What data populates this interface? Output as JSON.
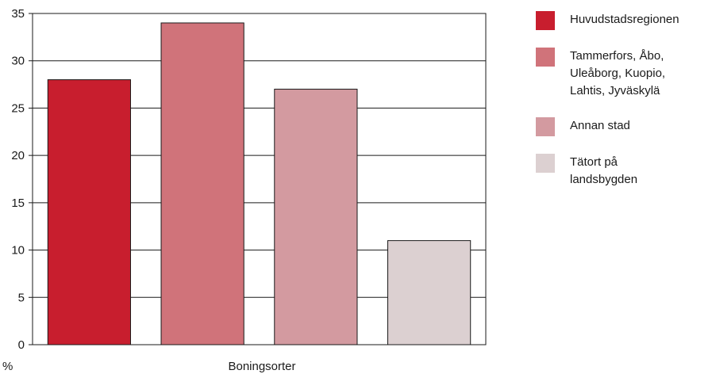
{
  "chart_data": {
    "type": "bar",
    "title": "",
    "xlabel": "Boningsorter",
    "ylabel": "%",
    "ylim": [
      0,
      35
    ],
    "yticks": [
      0,
      5,
      10,
      15,
      20,
      25,
      30,
      35
    ],
    "grid": true,
    "legend_position": "right",
    "series": [
      {
        "name": "Huvudstadsregionen",
        "value": 28,
        "color": "#c81e2e"
      },
      {
        "name": "Tammerfors, Åbo,\nUleåborg, Kuopio,\nLahtis, Jyväskylä",
        "value": 34,
        "color": "#d0737a"
      },
      {
        "name": "Annan stad",
        "value": 27,
        "color": "#d39aa0"
      },
      {
        "name": "Tätort på\nlandsbygden",
        "value": 11,
        "color": "#dcd0d1"
      }
    ]
  }
}
